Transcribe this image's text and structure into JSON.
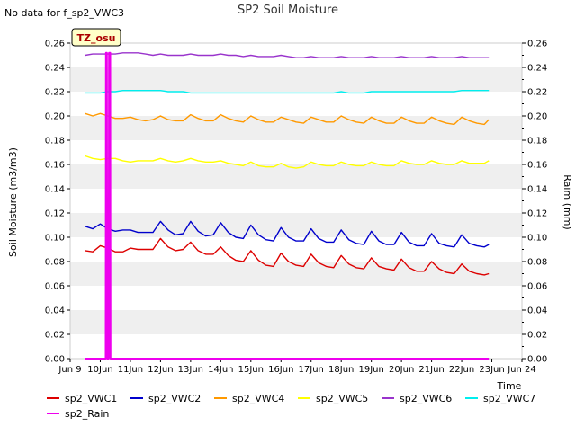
{
  "chart_data": {
    "type": "line",
    "title": "SP2 Soil Moisture",
    "note": "No data for f_sp2_VWC3",
    "badge": "TZ_osu",
    "xlabel": "Time",
    "ylabel": "Soil Moisture (m3/m3)",
    "y2label": "Raim (mm)",
    "xlim": [
      9,
      24
    ],
    "ylim": [
      0,
      0.26
    ],
    "y2lim": [
      0,
      0.26
    ],
    "grid": "horizontal bands",
    "legend_position": "bottom",
    "x_ticks": [
      {
        "x": 9,
        "label": "Jun 9"
      },
      {
        "x": 10,
        "label": "10Jun"
      },
      {
        "x": 11,
        "label": "11Jun"
      },
      {
        "x": 12,
        "label": "12Jun"
      },
      {
        "x": 13,
        "label": "13Jun"
      },
      {
        "x": 14,
        "label": "14Jun"
      },
      {
        "x": 15,
        "label": "15Jun"
      },
      {
        "x": 16,
        "label": "16Jun"
      },
      {
        "x": 17,
        "label": "17Jun"
      },
      {
        "x": 18,
        "label": "18Jun"
      },
      {
        "x": 19,
        "label": "19Jun"
      },
      {
        "x": 20,
        "label": "20Jun"
      },
      {
        "x": 21,
        "label": "21Jun"
      },
      {
        "x": 22,
        "label": "22Jun"
      },
      {
        "x": 23,
        "label": "23Jun"
      },
      {
        "x": 24,
        "label": "Jun 24"
      }
    ],
    "y_ticks": [
      "0.00",
      "0.02",
      "0.04",
      "0.06",
      "0.08",
      "0.10",
      "0.12",
      "0.14",
      "0.16",
      "0.18",
      "0.20",
      "0.22",
      "0.24",
      "0.26"
    ],
    "x": [
      9.5,
      9.75,
      10,
      10.25,
      10.5,
      10.75,
      11,
      11.25,
      11.5,
      11.75,
      12,
      12.25,
      12.5,
      12.75,
      13,
      13.25,
      13.5,
      13.75,
      14,
      14.25,
      14.5,
      14.75,
      15,
      15.25,
      15.5,
      15.75,
      16,
      16.25,
      16.5,
      16.75,
      17,
      17.25,
      17.5,
      17.75,
      18,
      18.25,
      18.5,
      18.75,
      19,
      19.25,
      19.5,
      19.75,
      20,
      20.25,
      20.5,
      20.75,
      21,
      21.25,
      21.5,
      21.75,
      22,
      22.25,
      22.5,
      22.75,
      22.9
    ],
    "series": [
      {
        "name": "sp2_VWC1",
        "color": "#dd0000",
        "axis": "left",
        "values": [
          0.089,
          0.088,
          0.093,
          0.091,
          0.088,
          0.088,
          0.091,
          0.09,
          0.09,
          0.09,
          0.099,
          0.092,
          0.089,
          0.09,
          0.096,
          0.089,
          0.086,
          0.086,
          0.092,
          0.085,
          0.081,
          0.08,
          0.089,
          0.081,
          0.077,
          0.076,
          0.087,
          0.08,
          0.077,
          0.076,
          0.086,
          0.079,
          0.076,
          0.075,
          0.085,
          0.078,
          0.075,
          0.074,
          0.083,
          0.076,
          0.074,
          0.073,
          0.082,
          0.075,
          0.072,
          0.072,
          0.08,
          0.074,
          0.071,
          0.07,
          0.078,
          0.072,
          0.07,
          0.069,
          0.07
        ]
      },
      {
        "name": "sp2_VWC2",
        "color": "#0000cc",
        "axis": "left",
        "values": [
          0.109,
          0.107,
          0.111,
          0.107,
          0.105,
          0.106,
          0.106,
          0.104,
          0.104,
          0.104,
          0.113,
          0.106,
          0.102,
          0.103,
          0.113,
          0.105,
          0.101,
          0.102,
          0.112,
          0.104,
          0.1,
          0.099,
          0.11,
          0.102,
          0.098,
          0.097,
          0.108,
          0.1,
          0.097,
          0.097,
          0.107,
          0.099,
          0.096,
          0.096,
          0.106,
          0.098,
          0.095,
          0.094,
          0.105,
          0.097,
          0.094,
          0.094,
          0.104,
          0.096,
          0.093,
          0.093,
          0.103,
          0.095,
          0.093,
          0.092,
          0.102,
          0.095,
          0.093,
          0.092,
          0.094
        ]
      },
      {
        "name": "sp2_VWC4",
        "color": "#ff9900",
        "axis": "left",
        "values": [
          0.202,
          0.2,
          0.202,
          0.2,
          0.198,
          0.198,
          0.199,
          0.197,
          0.196,
          0.197,
          0.2,
          0.197,
          0.196,
          0.196,
          0.201,
          0.198,
          0.196,
          0.196,
          0.201,
          0.198,
          0.196,
          0.195,
          0.2,
          0.197,
          0.195,
          0.195,
          0.199,
          0.197,
          0.195,
          0.194,
          0.199,
          0.197,
          0.195,
          0.195,
          0.2,
          0.197,
          0.195,
          0.194,
          0.199,
          0.196,
          0.194,
          0.194,
          0.199,
          0.196,
          0.194,
          0.194,
          0.199,
          0.196,
          0.194,
          0.193,
          0.199,
          0.196,
          0.194,
          0.193,
          0.197
        ]
      },
      {
        "name": "sp2_VWC5",
        "color": "#ffff00",
        "axis": "left",
        "values": [
          0.167,
          0.165,
          0.164,
          0.165,
          0.165,
          0.163,
          0.162,
          0.163,
          0.163,
          0.163,
          0.165,
          0.163,
          0.162,
          0.163,
          0.165,
          0.163,
          0.162,
          0.162,
          0.163,
          0.161,
          0.16,
          0.159,
          0.162,
          0.159,
          0.158,
          0.158,
          0.161,
          0.158,
          0.157,
          0.158,
          0.162,
          0.16,
          0.159,
          0.159,
          0.162,
          0.16,
          0.159,
          0.159,
          0.162,
          0.16,
          0.159,
          0.159,
          0.163,
          0.161,
          0.16,
          0.16,
          0.163,
          0.161,
          0.16,
          0.16,
          0.163,
          0.161,
          0.161,
          0.161,
          0.163
        ]
      },
      {
        "name": "sp2_VWC6",
        "color": "#9933cc",
        "axis": "left",
        "values": [
          0.25,
          0.251,
          0.251,
          0.251,
          0.251,
          0.252,
          0.252,
          0.252,
          0.251,
          0.25,
          0.251,
          0.25,
          0.25,
          0.25,
          0.251,
          0.25,
          0.25,
          0.25,
          0.251,
          0.25,
          0.25,
          0.249,
          0.25,
          0.249,
          0.249,
          0.249,
          0.25,
          0.249,
          0.248,
          0.248,
          0.249,
          0.248,
          0.248,
          0.248,
          0.249,
          0.248,
          0.248,
          0.248,
          0.249,
          0.248,
          0.248,
          0.248,
          0.249,
          0.248,
          0.248,
          0.248,
          0.249,
          0.248,
          0.248,
          0.248,
          0.249,
          0.248,
          0.248,
          0.248,
          0.248
        ]
      },
      {
        "name": "sp2_VWC7",
        "color": "#00eeee",
        "axis": "left",
        "values": [
          0.219,
          0.219,
          0.219,
          0.22,
          0.22,
          0.221,
          0.221,
          0.221,
          0.221,
          0.221,
          0.221,
          0.22,
          0.22,
          0.22,
          0.219,
          0.219,
          0.219,
          0.219,
          0.219,
          0.219,
          0.219,
          0.219,
          0.219,
          0.219,
          0.219,
          0.219,
          0.219,
          0.219,
          0.219,
          0.219,
          0.219,
          0.219,
          0.219,
          0.219,
          0.22,
          0.219,
          0.219,
          0.219,
          0.22,
          0.22,
          0.22,
          0.22,
          0.22,
          0.22,
          0.22,
          0.22,
          0.22,
          0.22,
          0.22,
          0.22,
          0.221,
          0.221,
          0.221,
          0.221,
          0.221
        ]
      },
      {
        "name": "sp2_Rain",
        "color": "#ee00ee",
        "axis": "right",
        "x": [
          9.5,
          10.18,
          10.19,
          10.22,
          10.23,
          10.28,
          10.29,
          10.33,
          10.34,
          22.9
        ],
        "values": [
          0,
          0,
          0.252,
          0.252,
          0,
          0,
          0.252,
          0.252,
          0,
          0
        ]
      }
    ]
  }
}
